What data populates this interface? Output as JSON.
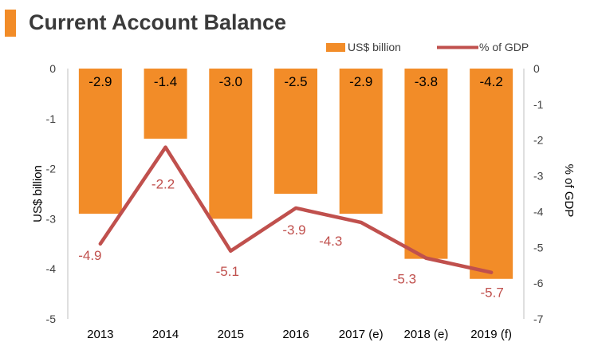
{
  "title": "Current Account Balance",
  "colors": {
    "accent": "#F28C28",
    "bar": "#F28C28",
    "line": "#C0504D",
    "title_text": "#3a3a3a",
    "axis": "#7f7f7f"
  },
  "chart_data": {
    "type": "bar",
    "title": "Current Account Balance",
    "categories": [
      "2013",
      "2014",
      "2015",
      "2016",
      "2017 (e)",
      "2018 (e)",
      "2019 (f)"
    ],
    "series": [
      {
        "name": "US$ billion",
        "type": "bar",
        "axis": "left",
        "values": [
          -2.9,
          -1.4,
          -3.0,
          -2.5,
          -2.9,
          -3.8,
          -4.2
        ],
        "labels": [
          "-2.9",
          "-1.4",
          "-3.0",
          "-2.5",
          "-2.9",
          "-3.8",
          "-4.2"
        ]
      },
      {
        "name": "% of GDP",
        "type": "line",
        "axis": "right",
        "values": [
          -4.9,
          -2.2,
          -5.1,
          -3.9,
          -4.3,
          -5.3,
          -5.7
        ],
        "labels": [
          "-4.9",
          "-2.2",
          "-5.1",
          "-3.9",
          "-4.3",
          "-5.3",
          "-5.7"
        ]
      }
    ],
    "ylabel": "US$ billion",
    "y2label": "% of GDP",
    "ylim": [
      -5,
      0
    ],
    "y2lim": [
      -7,
      0
    ],
    "yticks": [
      "0",
      "-1",
      "-2",
      "-3",
      "-4",
      "-5"
    ],
    "y2ticks": [
      "0",
      "-1",
      "-2",
      "-3",
      "-4",
      "-5",
      "-6",
      "-7"
    ],
    "legend": [
      "US$ billion",
      "% of GDP"
    ],
    "legend_position": "top-right"
  }
}
